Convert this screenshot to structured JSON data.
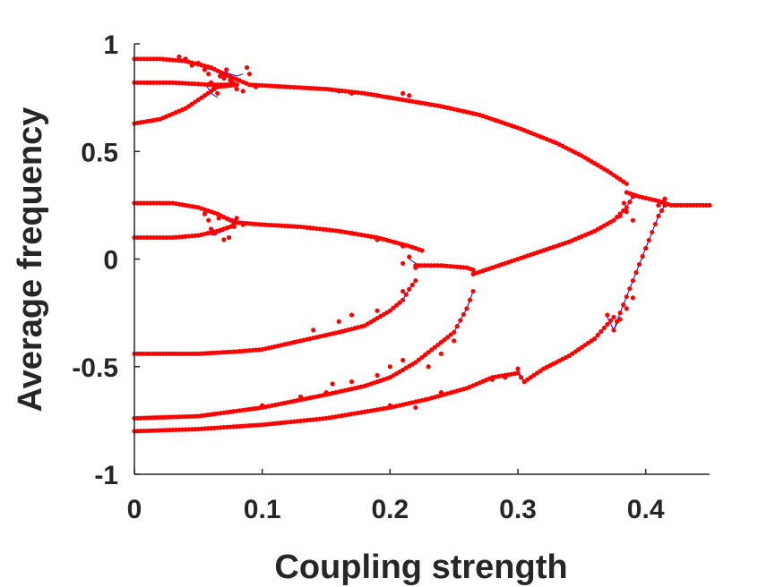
{
  "chart_data": {
    "type": "scatter",
    "title": "",
    "xlabel": "Coupling strength",
    "ylabel": "Average frequency",
    "xlim": [
      0,
      0.45
    ],
    "ylim": [
      -1,
      1
    ],
    "xticks": [
      0,
      0.1,
      0.2,
      0.3,
      0.4
    ],
    "xtick_labels": [
      "0",
      "0.1",
      "0.2",
      "0.3",
      "0.4"
    ],
    "yticks": [
      -1,
      -0.5,
      0,
      0.5,
      1
    ],
    "ytick_labels": [
      "-1",
      "-0.5",
      "0",
      "0.5",
      "1"
    ],
    "grid": false,
    "legend": "none",
    "colors": {
      "markers": "#ff0000",
      "line": "#0000ff",
      "axes": "#262626"
    },
    "branches": [
      {
        "x": [
          0,
          0.02,
          0.04,
          0.06,
          0.07,
          0.09,
          0.12,
          0.15,
          0.18,
          0.21,
          0.24,
          0.27,
          0.3,
          0.33,
          0.35,
          0.37,
          0.385
        ],
        "y": [
          0.93,
          0.93,
          0.92,
          0.89,
          0.86,
          0.81,
          0.8,
          0.79,
          0.77,
          0.74,
          0.71,
          0.67,
          0.61,
          0.54,
          0.48,
          0.41,
          0.35
        ]
      },
      {
        "x": [
          0,
          0.03,
          0.06,
          0.08
        ],
        "y": [
          0.82,
          0.82,
          0.81,
          0.81
        ]
      },
      {
        "x": [
          0,
          0.02,
          0.04,
          0.055,
          0.065,
          0.08
        ],
        "y": [
          0.63,
          0.65,
          0.7,
          0.76,
          0.8,
          0.81
        ]
      },
      {
        "x": [
          0,
          0.03,
          0.05,
          0.065,
          0.075,
          0.08,
          0.1,
          0.13,
          0.16,
          0.19,
          0.215,
          0.225
        ],
        "y": [
          0.26,
          0.26,
          0.24,
          0.21,
          0.18,
          0.17,
          0.16,
          0.15,
          0.13,
          0.1,
          0.06,
          0.04
        ]
      },
      {
        "x": [
          0,
          0.03,
          0.05,
          0.065,
          0.075,
          0.08
        ],
        "y": [
          0.1,
          0.1,
          0.11,
          0.13,
          0.15,
          0.17
        ]
      },
      {
        "x": [
          0.22,
          0.24,
          0.26,
          0.265
        ],
        "y": [
          -0.03,
          -0.03,
          -0.04,
          -0.05
        ]
      },
      {
        "x": [
          0.265,
          0.28,
          0.3,
          0.32,
          0.34,
          0.36,
          0.375,
          0.385,
          0.39
        ],
        "y": [
          -0.07,
          -0.04,
          0.0,
          0.04,
          0.08,
          0.13,
          0.18,
          0.24,
          0.29
        ]
      },
      {
        "x": [
          0.385,
          0.395,
          0.41,
          0.42,
          0.43,
          0.45
        ],
        "y": [
          0.31,
          0.29,
          0.27,
          0.25,
          0.25,
          0.25
        ]
      },
      {
        "x": [
          0,
          0.05,
          0.08,
          0.1,
          0.13,
          0.16,
          0.18,
          0.2,
          0.21,
          0.215,
          0.22
        ],
        "y": [
          -0.44,
          -0.44,
          -0.43,
          -0.42,
          -0.38,
          -0.34,
          -0.31,
          -0.24,
          -0.19,
          -0.14,
          -0.1
        ]
      },
      {
        "x": [
          0,
          0.05,
          0.1,
          0.15,
          0.18,
          0.2,
          0.22,
          0.235,
          0.25,
          0.26,
          0.265
        ],
        "y": [
          -0.74,
          -0.73,
          -0.69,
          -0.63,
          -0.59,
          -0.55,
          -0.48,
          -0.41,
          -0.34,
          -0.23,
          -0.15
        ]
      },
      {
        "x": [
          0,
          0.05,
          0.1,
          0.15,
          0.2,
          0.23,
          0.26,
          0.28,
          0.3,
          0.305
        ],
        "y": [
          -0.8,
          -0.79,
          -0.77,
          -0.74,
          -0.69,
          -0.65,
          -0.6,
          -0.55,
          -0.53,
          -0.57
        ]
      },
      {
        "x": [
          0.305,
          0.32,
          0.34,
          0.36,
          0.375
        ],
        "y": [
          -0.57,
          -0.51,
          -0.45,
          -0.37,
          -0.27
        ]
      },
      {
        "x": [
          0.375,
          0.38,
          0.39,
          0.4,
          0.41,
          0.415
        ],
        "y": [
          -0.33,
          -0.25,
          -0.1,
          0.05,
          0.2,
          0.25
        ]
      }
    ],
    "scattered_points": [
      [
        0.035,
        0.94
      ],
      [
        0.04,
        0.93
      ],
      [
        0.045,
        0.9
      ],
      [
        0.05,
        0.91
      ],
      [
        0.055,
        0.88
      ],
      [
        0.058,
        0.86
      ],
      [
        0.06,
        0.82
      ],
      [
        0.062,
        0.79
      ],
      [
        0.065,
        0.77
      ],
      [
        0.067,
        0.85
      ],
      [
        0.07,
        0.84
      ],
      [
        0.072,
        0.88
      ],
      [
        0.075,
        0.83
      ],
      [
        0.077,
        0.82
      ],
      [
        0.08,
        0.79
      ],
      [
        0.082,
        0.83
      ],
      [
        0.085,
        0.78
      ],
      [
        0.088,
        0.89
      ],
      [
        0.09,
        0.86
      ],
      [
        0.095,
        0.8
      ],
      [
        0.16,
        0.78
      ],
      [
        0.17,
        0.77
      ],
      [
        0.19,
        0.76
      ],
      [
        0.2,
        0.75
      ],
      [
        0.21,
        0.77
      ],
      [
        0.215,
        0.76
      ],
      [
        0.055,
        0.21
      ],
      [
        0.058,
        0.18
      ],
      [
        0.06,
        0.14
      ],
      [
        0.063,
        0.12
      ],
      [
        0.066,
        0.19
      ],
      [
        0.07,
        0.09
      ],
      [
        0.074,
        0.1
      ],
      [
        0.078,
        0.15
      ],
      [
        0.08,
        0.19
      ],
      [
        0.085,
        0.16
      ],
      [
        0.17,
        0.12
      ],
      [
        0.19,
        0.09
      ],
      [
        0.21,
        0.06
      ],
      [
        0.215,
        0.01
      ],
      [
        0.21,
        -0.02
      ],
      [
        0.22,
        -0.04
      ],
      [
        0.14,
        -0.33
      ],
      [
        0.16,
        -0.29
      ],
      [
        0.17,
        -0.26
      ],
      [
        0.18,
        -0.31
      ],
      [
        0.19,
        -0.24
      ],
      [
        0.21,
        -0.15
      ],
      [
        0.2,
        -0.5
      ],
      [
        0.19,
        -0.54
      ],
      [
        0.17,
        -0.57
      ],
      [
        0.155,
        -0.58
      ],
      [
        0.15,
        -0.62
      ],
      [
        0.21,
        -0.47
      ],
      [
        0.23,
        -0.5
      ],
      [
        0.24,
        -0.44
      ],
      [
        0.25,
        -0.38
      ],
      [
        0.13,
        -0.64
      ],
      [
        0.1,
        -0.68
      ],
      [
        0.2,
        -0.68
      ],
      [
        0.22,
        -0.69
      ],
      [
        0.24,
        -0.62
      ],
      [
        0.28,
        -0.56
      ],
      [
        0.29,
        -0.55
      ],
      [
        0.3,
        -0.51
      ],
      [
        0.37,
        -0.26
      ],
      [
        0.38,
        -0.28
      ],
      [
        0.385,
        -0.23
      ],
      [
        0.39,
        -0.18
      ],
      [
        0.38,
        0.2
      ],
      [
        0.383,
        0.26
      ],
      [
        0.39,
        0.18
      ],
      [
        0.385,
        0.22
      ],
      [
        0.41,
        0.25
      ],
      [
        0.415,
        0.28
      ]
    ],
    "connector_lines": [
      {
        "x": [
          0.05,
          0.06,
          0.07,
          0.08,
          0.085
        ],
        "y": [
          0.9,
          0.88,
          0.87,
          0.85,
          0.86
        ]
      },
      {
        "x": [
          0.055,
          0.06,
          0.065
        ],
        "y": [
          0.82,
          0.77,
          0.75
        ]
      },
      {
        "x": [
          0.06,
          0.068,
          0.075,
          0.08
        ],
        "y": [
          0.22,
          0.2,
          0.19,
          0.18
        ]
      },
      {
        "x": [
          0.06,
          0.07,
          0.08
        ],
        "y": [
          0.11,
          0.13,
          0.17
        ]
      },
      {
        "x": [
          0.215,
          0.22,
          0.225
        ],
        "y": [
          0.0,
          -0.02,
          -0.03
        ]
      },
      {
        "x": [
          0.26,
          0.265,
          0.265
        ],
        "y": [
          -0.03,
          -0.06,
          -0.08
        ]
      },
      {
        "x": [
          0.3,
          0.305
        ],
        "y": [
          -0.52,
          -0.57
        ]
      },
      {
        "x": [
          0.37,
          0.375,
          0.38
        ],
        "y": [
          -0.27,
          -0.33,
          -0.27
        ]
      }
    ]
  }
}
